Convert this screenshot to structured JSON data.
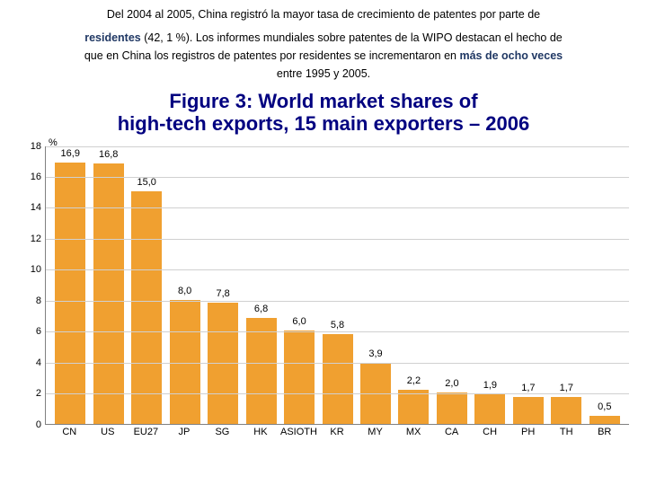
{
  "header": {
    "line1_pre": "Del 2004 al 2005, China registró la mayor tasa de crecimiento de  patentes por parte de",
    "line2_bold": "residentes",
    "line2_rest": "  (42, 1 %). Los informes mundiales sobre patentes de la WIPO destacan el hecho de",
    "line3_pre": "que en China los registros de patentes por residentes se incrementaron en ",
    "line3_bold": "más de ocho veces",
    "line4": "entre 1995 y 2005."
  },
  "chart": {
    "title_l1": "Figure 3: World market shares of",
    "title_l2": "high-tech exports, 15 main exporters – 2006",
    "type": "bar",
    "ylabel_pct": "%",
    "ylim": [
      0,
      18
    ],
    "yticks": [
      0,
      2,
      4,
      6,
      8,
      10,
      12,
      14,
      16,
      18
    ],
    "categories": [
      "CN",
      "US",
      "EU27",
      "JP",
      "SG",
      "HK",
      "ASIOTH",
      "KR",
      "MY",
      "MX",
      "CA",
      "CH",
      "PH",
      "TH",
      "BR"
    ],
    "values": [
      16.9,
      16.8,
      15.0,
      8.0,
      7.8,
      6.8,
      6.0,
      5.8,
      3.9,
      2.2,
      2.0,
      1.9,
      1.7,
      1.7,
      0.5
    ],
    "value_labels": [
      "16,9",
      "16,8",
      "15,0",
      "8,0",
      "7,8",
      "6,8",
      "6,0",
      "5,8",
      "3,9",
      "2,2",
      "2,0",
      "1,9",
      "1,7",
      "1,7",
      "0,5"
    ],
    "bar_color": "#f0a030",
    "bar_width": 0.8,
    "grid_color": "#d0d0d0",
    "axis_color": "#808080",
    "background_color": "#ffffff",
    "label_fontsize": 11,
    "title_color": "#000080",
    "title_fontsize": 22
  }
}
